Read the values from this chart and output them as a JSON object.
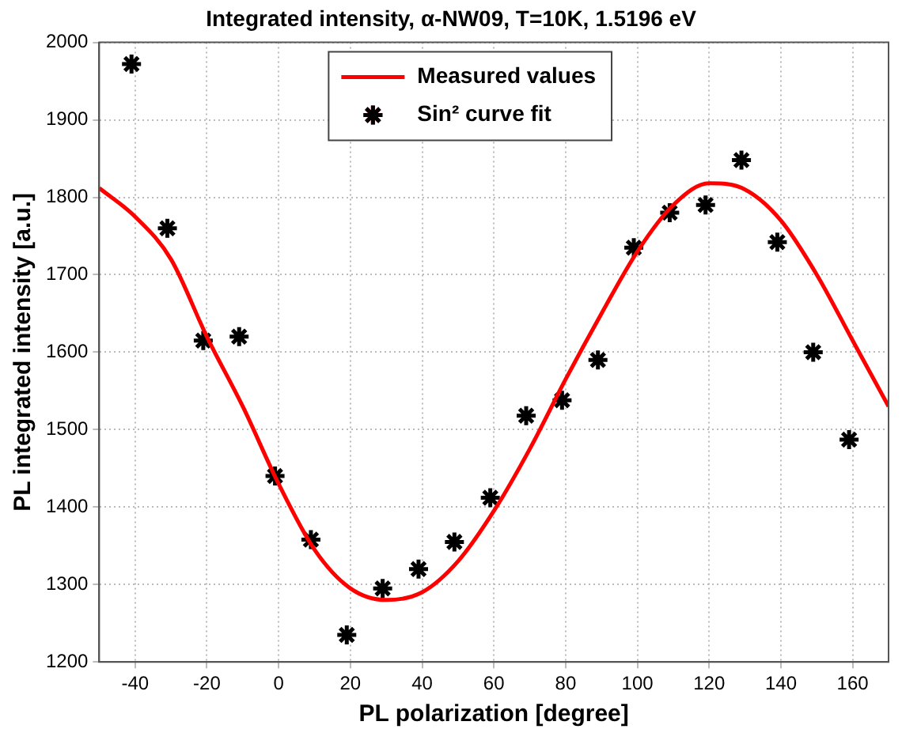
{
  "chart_data": {
    "type": "scatter",
    "title": "Integrated intensity, α-NW09, T=10K, 1.5196 eV",
    "xlabel": "PL polarization [degree]",
    "ylabel": "PL integrated intensity [a.u.]",
    "xlim": [
      -50,
      170
    ],
    "xticks": [
      -40,
      -20,
      0,
      20,
      40,
      60,
      80,
      100,
      120,
      140,
      160
    ],
    "ylim": [
      1200,
      2000
    ],
    "yticks": [
      1200,
      1300,
      1400,
      1500,
      1600,
      1700,
      1800,
      1900,
      2000
    ],
    "grid": true,
    "legend": "top",
    "series": [
      {
        "name": "Measured values",
        "type": "line",
        "color": "#ff0000",
        "marker": "none",
        "line_style": "solid",
        "x": [
          -50,
          -40,
          -30,
          -20,
          -10,
          0,
          10,
          20,
          30,
          40,
          50,
          60,
          70,
          80,
          90,
          100,
          110,
          120,
          130,
          140,
          150,
          160,
          170
        ],
        "values": [
          1812,
          1775,
          1720,
          1620,
          1530,
          1430,
          1345,
          1295,
          1280,
          1290,
          1330,
          1395,
          1475,
          1565,
          1650,
          1730,
          1790,
          1818,
          1810,
          1770,
          1700,
          1615,
          1530
        ]
      },
      {
        "name": "Sin² curve fit",
        "type": "scatter",
        "color": "#000000",
        "marker": "cross",
        "x": [
          -41,
          -31,
          -21,
          -11,
          -1,
          9,
          19,
          29,
          39,
          49,
          59,
          69,
          79,
          89,
          99,
          109,
          119,
          129,
          139,
          149,
          159
        ],
        "values": [
          1972,
          1760,
          1615,
          1620,
          1440,
          1358,
          1235,
          1295,
          1320,
          1355,
          1412,
          1518,
          1538,
          1590,
          1735,
          1780,
          1790,
          1848,
          1742,
          1600,
          1487
        ]
      }
    ]
  }
}
